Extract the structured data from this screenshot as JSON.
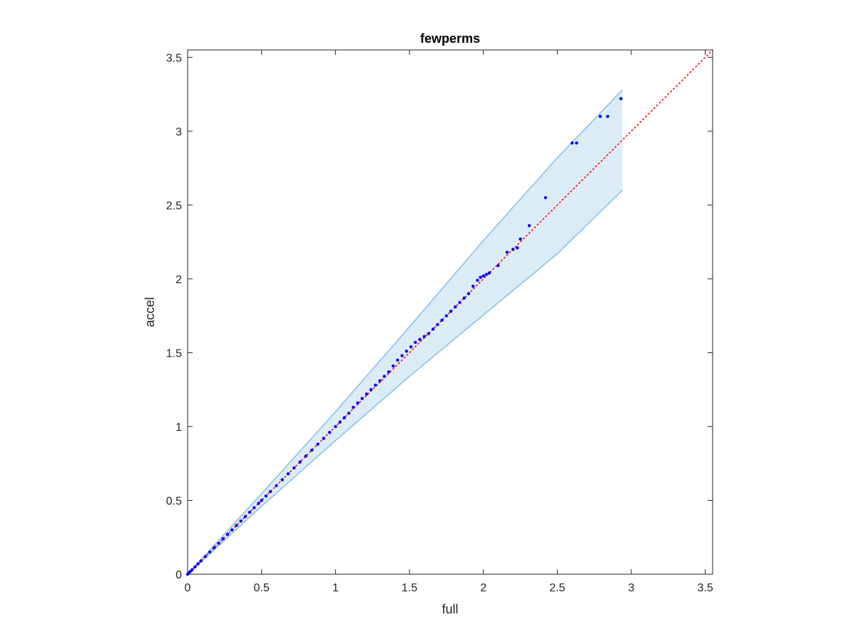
{
  "chart_data": {
    "type": "scatter",
    "title": "fewperms",
    "xlabel": "full",
    "ylabel": "accel",
    "xlim": [
      0,
      3.55
    ],
    "ylim": [
      0,
      3.55
    ],
    "x_ticks": [
      0,
      0.5,
      1,
      1.5,
      2,
      2.5,
      3,
      3.5
    ],
    "x_tick_labels": [
      "0",
      "0.5",
      "1",
      "1.5",
      "2",
      "2.5",
      "3",
      "3.5"
    ],
    "y_ticks": [
      0,
      0.5,
      1,
      1.5,
      2,
      2.5,
      3,
      3.5
    ],
    "y_tick_labels": [
      "0",
      "0.5",
      "1",
      "1.5",
      "2",
      "2.5",
      "3",
      "3.5"
    ],
    "grid": false,
    "reference_line": {
      "style": "dotted",
      "color": "#ff0000",
      "from": [
        0,
        0
      ],
      "to": [
        3.55,
        3.55
      ]
    },
    "confidence_band": {
      "color": "#4d9fd6",
      "fill_opacity": 0.2,
      "x": [
        0,
        0.5,
        1.0,
        1.5,
        2.0,
        2.5,
        2.94
      ],
      "upper": [
        0,
        0.545,
        1.1,
        1.675,
        2.26,
        2.82,
        3.28
      ],
      "lower": [
        0,
        0.46,
        0.905,
        1.34,
        1.755,
        2.17,
        2.6
      ]
    },
    "series": [
      {
        "color": "#0000ff",
        "points": [
          [
            0.0,
            0.0
          ],
          [
            0.01,
            0.01
          ],
          [
            0.02,
            0.02
          ],
          [
            0.03,
            0.03
          ],
          [
            0.05,
            0.05
          ],
          [
            0.07,
            0.07
          ],
          [
            0.09,
            0.09
          ],
          [
            0.12,
            0.12
          ],
          [
            0.15,
            0.15
          ],
          [
            0.18,
            0.18
          ],
          [
            0.21,
            0.21
          ],
          [
            0.24,
            0.24
          ],
          [
            0.27,
            0.27
          ],
          [
            0.3,
            0.3
          ],
          [
            0.33,
            0.33
          ],
          [
            0.36,
            0.36
          ],
          [
            0.39,
            0.39
          ],
          [
            0.42,
            0.42
          ],
          [
            0.45,
            0.45
          ],
          [
            0.48,
            0.48
          ],
          [
            0.5,
            0.5
          ],
          [
            0.53,
            0.53
          ],
          [
            0.56,
            0.56
          ],
          [
            0.6,
            0.6
          ],
          [
            0.64,
            0.64
          ],
          [
            0.68,
            0.68
          ],
          [
            0.72,
            0.72
          ],
          [
            0.76,
            0.76
          ],
          [
            0.8,
            0.8
          ],
          [
            0.84,
            0.84
          ],
          [
            0.88,
            0.88
          ],
          [
            0.92,
            0.92
          ],
          [
            0.96,
            0.96
          ],
          [
            1.0,
            1.0
          ],
          [
            1.03,
            1.03
          ],
          [
            1.06,
            1.06
          ],
          [
            1.09,
            1.09
          ],
          [
            1.12,
            1.13
          ],
          [
            1.15,
            1.16
          ],
          [
            1.18,
            1.19
          ],
          [
            1.21,
            1.22
          ],
          [
            1.24,
            1.25
          ],
          [
            1.27,
            1.28
          ],
          [
            1.3,
            1.31
          ],
          [
            1.33,
            1.34
          ],
          [
            1.36,
            1.37
          ],
          [
            1.39,
            1.41
          ],
          [
            1.42,
            1.45
          ],
          [
            1.45,
            1.48
          ],
          [
            1.48,
            1.51
          ],
          [
            1.51,
            1.54
          ],
          [
            1.54,
            1.57
          ],
          [
            1.57,
            1.59
          ],
          [
            1.6,
            1.61
          ],
          [
            1.63,
            1.63
          ],
          [
            1.66,
            1.66
          ],
          [
            1.69,
            1.69
          ],
          [
            1.72,
            1.72
          ],
          [
            1.75,
            1.75
          ],
          [
            1.78,
            1.78
          ],
          [
            1.81,
            1.81
          ],
          [
            1.84,
            1.84
          ],
          [
            1.87,
            1.87
          ],
          [
            1.9,
            1.9
          ],
          [
            1.93,
            1.95
          ],
          [
            1.96,
            1.99
          ],
          [
            1.98,
            2.01
          ],
          [
            2.0,
            2.02
          ],
          [
            2.02,
            2.03
          ],
          [
            2.04,
            2.04
          ],
          [
            2.1,
            2.09
          ],
          [
            2.16,
            2.18
          ],
          [
            2.2,
            2.2
          ],
          [
            2.23,
            2.21
          ],
          [
            2.25,
            2.27
          ],
          [
            2.31,
            2.36
          ],
          [
            2.42,
            2.55
          ],
          [
            2.6,
            2.92
          ],
          [
            2.63,
            2.92
          ],
          [
            2.79,
            3.1
          ],
          [
            2.84,
            3.1
          ],
          [
            2.93,
            3.22
          ]
        ]
      }
    ]
  }
}
